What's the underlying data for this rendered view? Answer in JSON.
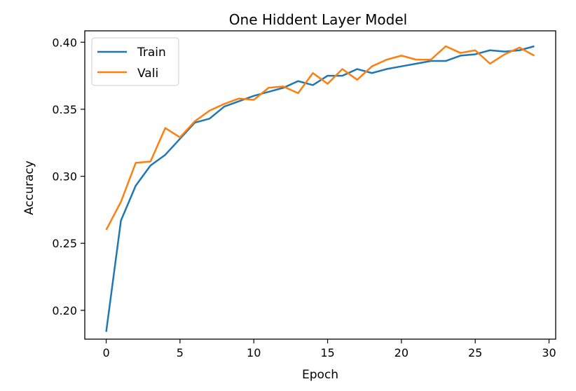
{
  "chart_data": {
    "type": "line",
    "title": "One Hiddent Layer Model",
    "xlabel": "Epoch",
    "ylabel": "Accuracy",
    "xlim": [
      -1.45,
      30.45
    ],
    "ylim": [
      0.1785,
      0.4085
    ],
    "xticks": [
      0,
      5,
      10,
      15,
      20,
      25,
      30
    ],
    "xtick_labels": [
      "0",
      "5",
      "10",
      "15",
      "20",
      "25",
      "30"
    ],
    "yticks": [
      0.2,
      0.25,
      0.3,
      0.35,
      0.4
    ],
    "ytick_labels": [
      "0.20",
      "0.25",
      "0.30",
      "0.35",
      "0.40"
    ],
    "grid": false,
    "legend_position": "upper-left",
    "x": [
      0,
      1,
      2,
      3,
      4,
      5,
      6,
      7,
      8,
      9,
      10,
      11,
      12,
      13,
      14,
      15,
      16,
      17,
      18,
      19,
      20,
      21,
      22,
      23,
      24,
      25,
      26,
      27,
      28,
      29
    ],
    "series": [
      {
        "name": "Train",
        "color": "#1f77b4",
        "values": [
          0.184,
          0.267,
          0.293,
          0.308,
          0.316,
          0.328,
          0.34,
          0.343,
          0.352,
          0.356,
          0.36,
          0.363,
          0.366,
          0.371,
          0.368,
          0.375,
          0.375,
          0.38,
          0.377,
          0.38,
          0.382,
          0.384,
          0.386,
          0.386,
          0.39,
          0.391,
          0.394,
          0.393,
          0.394,
          0.397
        ]
      },
      {
        "name": "Vali",
        "color": "#ff7f0e",
        "values": [
          0.26,
          0.281,
          0.31,
          0.311,
          0.336,
          0.329,
          0.341,
          0.349,
          0.354,
          0.358,
          0.357,
          0.366,
          0.367,
          0.362,
          0.377,
          0.369,
          0.38,
          0.372,
          0.382,
          0.387,
          0.39,
          0.387,
          0.387,
          0.397,
          0.392,
          0.394,
          0.384,
          0.391,
          0.396,
          0.39
        ]
      }
    ]
  }
}
